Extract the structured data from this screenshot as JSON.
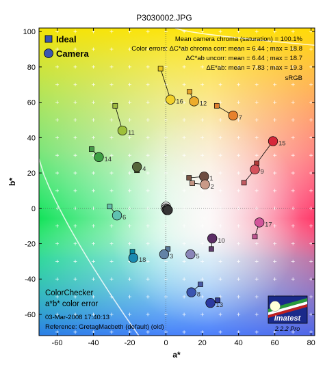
{
  "title": "P3030002.JPG",
  "chart_data": {
    "type": "scatter",
    "xlabel": "a*",
    "ylabel": "b*",
    "xlim": [
      -70,
      82
    ],
    "ylim": [
      -72,
      102
    ],
    "xticks": [
      -60,
      -40,
      -20,
      0,
      20,
      40,
      60,
      80
    ],
    "yticks": [
      -60,
      -40,
      -20,
      0,
      20,
      40,
      60,
      80,
      100
    ],
    "grid": true,
    "legend_position": "top-left",
    "legend": [
      {
        "name": "Ideal",
        "marker": "square"
      },
      {
        "name": "Camera",
        "marker": "circle"
      }
    ],
    "info_lines": [
      "Mean camera chroma (saturation) = 100.1%",
      "Color errors: ΔC*ab chroma corr:  mean = 6.44 ;  max = 18.8",
      "ΔC*ab uncorr:  mean = 6.44 ;  max = 18.7",
      "ΔE*ab:  mean = 7.83 ;  max = 19.3",
      "sRGB"
    ],
    "bottom_labels": {
      "line1": "ColorChecker",
      "line2": "a*b* color error",
      "date": "03-Mar-2008 17:40:13",
      "reference": "Reference: GretagMacbeth (default) (old)"
    },
    "logo": {
      "name": "Imatest",
      "version": "2.2.2  Pro"
    },
    "patches": [
      {
        "id": "1",
        "ideal": [
          12.7,
          17.3
        ],
        "camera": [
          21.0,
          18.0
        ],
        "ideal_color": "#7a5545",
        "camera_color": "#6e4c40"
      },
      {
        "id": "2",
        "ideal": [
          14.5,
          14.2
        ],
        "camera": [
          21.5,
          13.5
        ],
        "ideal_color": "#c39483",
        "camera_color": "#c99a88"
      },
      {
        "id": "3",
        "ideal": [
          1.0,
          -23.0
        ],
        "camera": [
          -1.0,
          -26.0
        ],
        "ideal_color": "#5c7a9a",
        "camera_color": "#6383a6"
      },
      {
        "id": "4",
        "ideal": [
          -16.0,
          21.5
        ],
        "camera": [
          -16.0,
          23.5
        ],
        "ideal_color": "#5a6c3c",
        "camera_color": "#55663a"
      },
      {
        "id": "5",
        "ideal": [
          13.5,
          -26.0
        ],
        "camera": [
          13.5,
          -26.0
        ],
        "ideal_color": "#8581b1",
        "camera_color": "#8a86b8"
      },
      {
        "id": "6",
        "ideal": [
          -31.0,
          1.0
        ],
        "camera": [
          -27.0,
          -4.0
        ],
        "ideal_color": "#66bdaa",
        "camera_color": "#5fc2b0"
      },
      {
        "id": "7",
        "ideal": [
          28.0,
          58.0
        ],
        "camera": [
          37.0,
          52.5
        ],
        "ideal_color": "#e07f2e",
        "camera_color": "#e7812c"
      },
      {
        "id": "8",
        "ideal": [
          19.0,
          -43.0
        ],
        "camera": [
          14.0,
          -47.5
        ],
        "ideal_color": "#4a5ba6",
        "camera_color": "#3a55b0"
      },
      {
        "id": "9",
        "ideal": [
          43.0,
          14.5
        ],
        "camera": [
          49.0,
          22.0
        ],
        "ideal_color": "#c15a61",
        "camera_color": "#d5515c"
      },
      {
        "id": "10",
        "ideal": [
          25.0,
          -23.0
        ],
        "camera": [
          25.5,
          -17.0
        ],
        "ideal_color": "#5e3c6c",
        "camera_color": "#5c2d66"
      },
      {
        "id": "11",
        "ideal": [
          -28.0,
          58.0
        ],
        "camera": [
          -24.0,
          44.0
        ],
        "ideal_color": "#9fba40",
        "camera_color": "#9ec03a"
      },
      {
        "id": "12",
        "ideal": [
          13.0,
          66.0
        ],
        "camera": [
          15.5,
          60.5
        ],
        "ideal_color": "#e5a22a",
        "camera_color": "#edac2c"
      },
      {
        "id": "13",
        "ideal": [
          28.5,
          -52.0
        ],
        "camera": [
          24.5,
          -53.5
        ],
        "ideal_color": "#343c95",
        "camera_color": "#2c3aa0"
      },
      {
        "id": "14",
        "ideal": [
          -41.0,
          33.5
        ],
        "camera": [
          -37.0,
          29.0
        ],
        "ideal_color": "#469a49",
        "camera_color": "#3da044"
      },
      {
        "id": "15",
        "ideal": [
          50.0,
          25.5
        ],
        "camera": [
          59.0,
          38.0
        ],
        "ideal_color": "#b03c3a",
        "camera_color": "#d6283a"
      },
      {
        "id": "16",
        "ideal": [
          -3.0,
          79.0
        ],
        "camera": [
          2.5,
          61.5
        ],
        "ideal_color": "#ecc81c",
        "camera_color": "#f2d02a"
      },
      {
        "id": "17",
        "ideal": [
          49.0,
          -16.0
        ],
        "camera": [
          51.5,
          -8.0
        ],
        "ideal_color": "#bc548f",
        "camera_color": "#d2559a"
      },
      {
        "id": "18",
        "ideal": [
          -18.5,
          -24.5
        ],
        "camera": [
          -18.0,
          -28.0
        ],
        "ideal_color": "#0888a2",
        "camera_color": "#1a8ab0"
      },
      {
        "id": "19",
        "ideal": [
          0.0,
          0.5
        ],
        "camera": [
          0.0,
          1.0
        ],
        "ideal_color": "#f3f3f3",
        "camera_color": "#f5f5f5"
      },
      {
        "id": "20",
        "ideal": [
          0.0,
          -0.5
        ],
        "camera": [
          0.0,
          0.0
        ],
        "ideal_color": "#c8c8c8",
        "camera_color": "#c8c8c8"
      },
      {
        "id": "21",
        "ideal": [
          0.0,
          -0.5
        ],
        "camera": [
          0.5,
          -0.5
        ],
        "ideal_color": "#a0a0a0",
        "camera_color": "#a2a2a2"
      },
      {
        "id": "22",
        "ideal": [
          0.0,
          -1.0
        ],
        "camera": [
          0.5,
          -1.0
        ],
        "ideal_color": "#7a7a7a",
        "camera_color": "#7b7b7b"
      },
      {
        "id": "23",
        "ideal": [
          0.0,
          -1.0
        ],
        "camera": [
          1.0,
          -1.0
        ],
        "ideal_color": "#555555",
        "camera_color": "#555555"
      },
      {
        "id": "24",
        "ideal": [
          0.0,
          -1.0
        ],
        "camera": [
          1.0,
          -1.0
        ],
        "ideal_color": "#343434",
        "camera_color": "#353535"
      }
    ],
    "label_ids": [
      "1",
      "2",
      "3",
      "4",
      "5",
      "6",
      "7",
      "8",
      "9",
      "10",
      "11",
      "12",
      "13",
      "14",
      "15",
      "16",
      "17",
      "18"
    ]
  }
}
